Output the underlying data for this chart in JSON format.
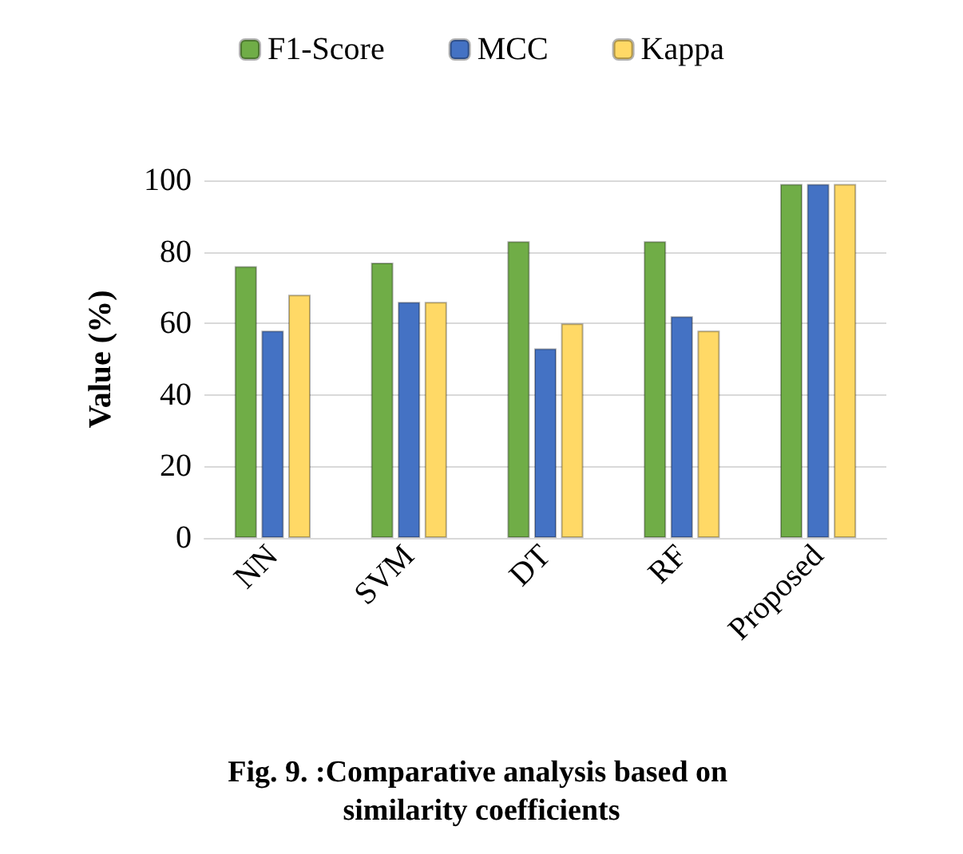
{
  "chart_data": {
    "type": "bar",
    "title": "Fig. 9. :Comparative analysis based on similarity coefficients",
    "ylabel": "Value (%)",
    "categories": [
      "NN",
      "SVM",
      "DT",
      "RF",
      "Proposed"
    ],
    "series": [
      {
        "name": "F1-Score",
        "color": "#70ad47",
        "values": [
          76,
          77,
          83,
          83,
          99
        ]
      },
      {
        "name": "MCC",
        "color": "#4472c4",
        "values": [
          58,
          66,
          53,
          62,
          99
        ]
      },
      {
        "name": "Kappa",
        "color": "#ffd966",
        "values": [
          68,
          66,
          60,
          58,
          99
        ]
      }
    ],
    "ylim": [
      0,
      100
    ],
    "yticks": [
      0,
      20,
      40,
      60,
      80,
      100
    ],
    "grid": "y",
    "legend": "top"
  }
}
